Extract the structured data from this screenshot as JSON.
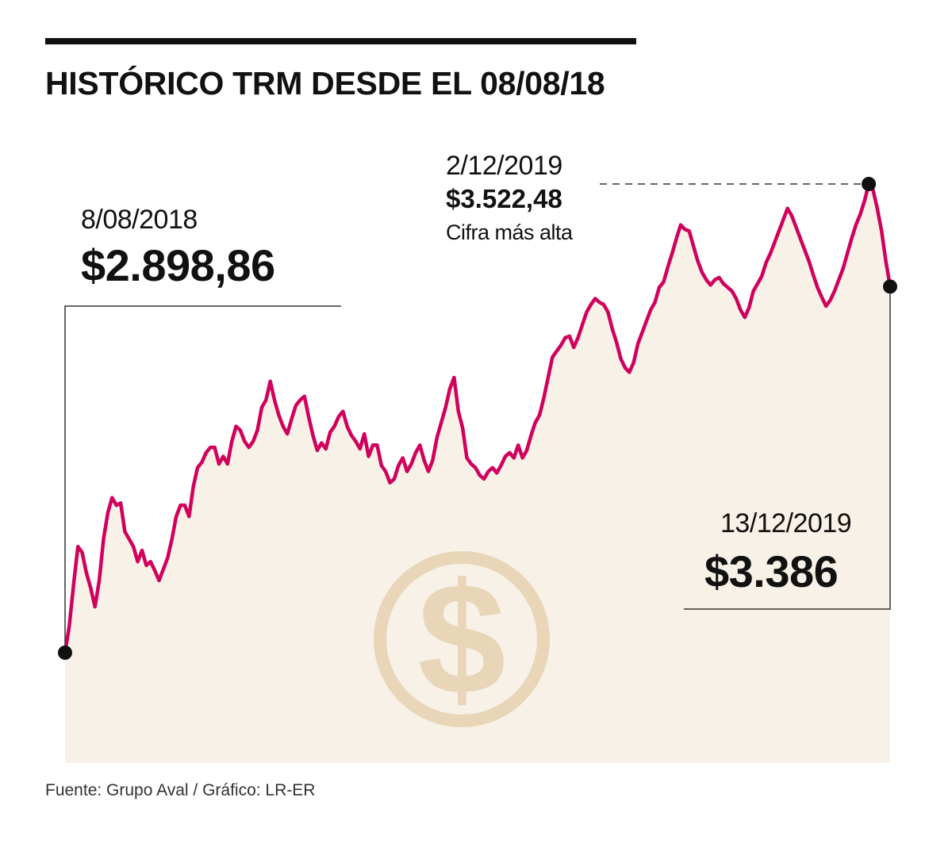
{
  "title": "HISTÓRICO TRM DESDE EL 08/08/18",
  "source": "Fuente: Grupo Aval / Gráfico: LR-ER",
  "colors": {
    "line": "#d0005c",
    "area": "#f7f1e7",
    "coin": "#e9d6b8",
    "text": "#111111"
  },
  "annotations": {
    "start": {
      "date": "8/08/2018",
      "value": "$2.898,86"
    },
    "peak": {
      "date": "2/12/2019",
      "value": "$3.522,48",
      "note": "Cifra más alta"
    },
    "end": {
      "date": "13/12/2019",
      "value": "$3.386"
    }
  },
  "chart_data": {
    "type": "area",
    "title": "HISTÓRICO TRM DESDE EL 08/08/18",
    "xlabel": "",
    "ylabel": "",
    "ylim": [
      2800,
      3550
    ],
    "grid": false,
    "series": [
      {
        "name": "TRM",
        "x_start": "2018-08-08",
        "x_end": "2019-12-13",
        "values": [
          2898.86,
          2935,
          2990,
          3040,
          3032,
          3005,
          2985,
          2960,
          2995,
          3050,
          3085,
          3105,
          3095,
          3098,
          3060,
          3050,
          3040,
          3020,
          3035,
          3015,
          3020,
          3008,
          2995,
          3010,
          3025,
          3050,
          3080,
          3095,
          3095,
          3080,
          3120,
          3145,
          3152,
          3165,
          3172,
          3172,
          3150,
          3160,
          3150,
          3180,
          3200,
          3195,
          3180,
          3172,
          3180,
          3195,
          3225,
          3235,
          3260,
          3235,
          3215,
          3200,
          3190,
          3210,
          3228,
          3235,
          3240,
          3212,
          3188,
          3168,
          3178,
          3170,
          3192,
          3200,
          3213,
          3220,
          3200,
          3188,
          3180,
          3170,
          3190,
          3160,
          3175,
          3175,
          3148,
          3140,
          3125,
          3130,
          3148,
          3158,
          3140,
          3150,
          3165,
          3175,
          3155,
          3140,
          3155,
          3185,
          3205,
          3225,
          3250,
          3265,
          3220,
          3198,
          3158,
          3150,
          3145,
          3135,
          3130,
          3140,
          3145,
          3138,
          3148,
          3160,
          3165,
          3158,
          3175,
          3158,
          3168,
          3188,
          3205,
          3215,
          3238,
          3265,
          3292,
          3300,
          3308,
          3318,
          3320,
          3305,
          3318,
          3335,
          3352,
          3362,
          3370,
          3365,
          3362,
          3352,
          3330,
          3312,
          3290,
          3278,
          3272,
          3285,
          3310,
          3325,
          3340,
          3355,
          3365,
          3385,
          3392,
          3412,
          3430,
          3450,
          3468,
          3462,
          3460,
          3440,
          3420,
          3405,
          3395,
          3388,
          3395,
          3398,
          3390,
          3385,
          3380,
          3370,
          3355,
          3345,
          3358,
          3380,
          3390,
          3400,
          3418,
          3430,
          3445,
          3460,
          3475,
          3490,
          3480,
          3465,
          3450,
          3435,
          3420,
          3402,
          3385,
          3372,
          3360,
          3368,
          3380,
          3395,
          3410,
          3430,
          3450,
          3468,
          3482,
          3500,
          3522.48,
          3515,
          3490,
          3460,
          3420,
          3386
        ],
        "label_start": "8/08/2018 $2.898,86",
        "label_peak": "2/12/2019 $3.522,48 Cifra más alta",
        "label_end": "13/12/2019 $3.386"
      }
    ]
  }
}
